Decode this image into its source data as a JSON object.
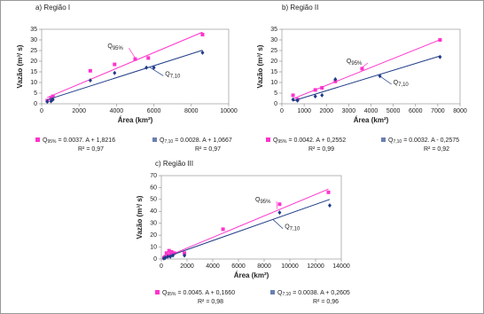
{
  "chart_data": [
    {
      "type": "scatter",
      "title": "a) Região I",
      "x_label": "Área (km²)",
      "y_label": "Vazão (m³/ s)",
      "xlim": [
        0,
        10000
      ],
      "xticks": [
        0,
        2000,
        4000,
        6000,
        8000,
        10000
      ],
      "ylim": [
        0,
        35
      ],
      "yticks": [
        0,
        5,
        10,
        15,
        20,
        25,
        30,
        35
      ],
      "annotations": [
        "Q95%",
        "Q7,10"
      ],
      "series": [
        {
          "name": "Q95%",
          "color": "#ff33cc",
          "marker": "square",
          "equation": "= 0.0037. A + 1,8216",
          "r2": "R² = 0,97",
          "trend": [
            0.0037,
            1.8216
          ],
          "x": [
            300,
            500,
            600,
            2600,
            3900,
            5000,
            5700,
            8600
          ],
          "values": [
            1.5,
            2.5,
            3.5,
            15.5,
            18.5,
            21,
            21.5,
            32.5
          ]
        },
        {
          "name": "Q7,10",
          "color": "#1f3c88",
          "marker": "diamond",
          "equation": "= 0.0028. A + 1,0667",
          "r2": "R² = 0,97",
          "trend": [
            0.0028,
            1.0667
          ],
          "x": [
            300,
            500,
            600,
            2600,
            3900,
            5600,
            6000,
            8600
          ],
          "values": [
            1,
            1.2,
            2,
            11,
            14.5,
            17,
            17,
            24
          ]
        }
      ]
    },
    {
      "type": "scatter",
      "title": "b) Região II",
      "x_label": "Área (km²)",
      "y_label": "Vazão (m³/ s)",
      "xlim": [
        0,
        8000
      ],
      "xticks": [
        0,
        1000,
        2000,
        3000,
        4000,
        5000,
        6000,
        7000,
        8000
      ],
      "ylim": [
        0,
        35
      ],
      "yticks": [
        0,
        5,
        10,
        15,
        20,
        25,
        30,
        35
      ],
      "annotations": [
        "Q95%",
        "Q7,10"
      ],
      "series": [
        {
          "name": "Q95%",
          "color": "#ff33cc",
          "marker": "square",
          "equation": "= 0.0042. A + 0,2552",
          "r2": "R² = 0,99",
          "trend": [
            0.0042,
            0.2552
          ],
          "x": [
            500,
            700,
            1500,
            1800,
            2400,
            3600,
            7100
          ],
          "values": [
            4,
            2,
            6.5,
            7.5,
            10.5,
            16.5,
            30
          ]
        },
        {
          "name": "Q7,10",
          "color": "#1f3c88",
          "marker": "diamond",
          "equation": "= 0.0032. A - 0,2575",
          "r2": "R² = 0,92",
          "trend": [
            0.0032,
            -0.2575
          ],
          "x": [
            500,
            700,
            1500,
            1800,
            2400,
            4400,
            7100
          ],
          "values": [
            2,
            1.5,
            3.5,
            4,
            11.5,
            13,
            22
          ]
        }
      ]
    },
    {
      "type": "scatter",
      "title": "c) Região III",
      "x_label": "Área (km²)",
      "y_label": "Vazão (m³/ s)",
      "xlim": [
        0,
        14000
      ],
      "xticks": [
        0,
        2000,
        4000,
        6000,
        8000,
        10000,
        12000,
        14000
      ],
      "ylim": [
        0,
        70
      ],
      "yticks": [
        0,
        10,
        20,
        30,
        40,
        50,
        60,
        70
      ],
      "annotations": [
        "Q95%",
        "Q7,10"
      ],
      "series": [
        {
          "name": "Q95%",
          "color": "#ff33cc",
          "marker": "square",
          "equation": "= 0.0045. A + 0,1660",
          "r2": "R² = 0,98",
          "trend": [
            0.0045,
            0.166
          ],
          "x": [
            200,
            300,
            400,
            500,
            600,
            700,
            800,
            1000,
            1800,
            4800,
            9200,
            13000
          ],
          "values": [
            1,
            2,
            5,
            3,
            7,
            4,
            6,
            5,
            5,
            25,
            46,
            56
          ]
        },
        {
          "name": "Q7,10",
          "color": "#1f3c88",
          "marker": "diamond",
          "equation": "= 0.0038. A + 0,2605",
          "r2": "R² = 0,96",
          "trend": [
            0.0038,
            0.2605
          ],
          "x": [
            200,
            300,
            500,
            700,
            900,
            1800,
            9200,
            13100
          ],
          "values": [
            0.5,
            1,
            2,
            2,
            3,
            3,
            39,
            45
          ]
        }
      ]
    }
  ]
}
